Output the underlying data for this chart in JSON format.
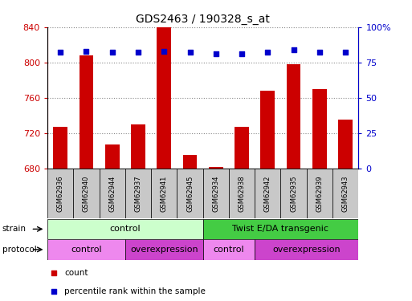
{
  "title": "GDS2463 / 190328_s_at",
  "samples": [
    "GSM62936",
    "GSM62940",
    "GSM62944",
    "GSM62937",
    "GSM62941",
    "GSM62945",
    "GSM62934",
    "GSM62938",
    "GSM62942",
    "GSM62935",
    "GSM62939",
    "GSM62943"
  ],
  "counts": [
    727,
    808,
    707,
    730,
    840,
    695,
    682,
    727,
    768,
    798,
    770,
    735
  ],
  "percentile_ranks": [
    82,
    83,
    82,
    82,
    83,
    82,
    81,
    81,
    82,
    84,
    82,
    82
  ],
  "ylim_left": [
    680,
    840
  ],
  "ylim_right": [
    0,
    100
  ],
  "yticks_left": [
    680,
    720,
    760,
    800,
    840
  ],
  "yticks_right": [
    0,
    25,
    50,
    75,
    100
  ],
  "bar_color": "#cc0000",
  "dot_color": "#0000cc",
  "strain_labels": [
    {
      "label": "control",
      "start": 0,
      "end": 6,
      "color": "#ccffcc"
    },
    {
      "label": "Twist E/DA transgenic",
      "start": 6,
      "end": 12,
      "color": "#44cc44"
    }
  ],
  "protocol_labels": [
    {
      "label": "control",
      "start": 0,
      "end": 3,
      "color": "#ee88ee"
    },
    {
      "label": "overexpression",
      "start": 3,
      "end": 6,
      "color": "#cc44cc"
    },
    {
      "label": "control",
      "start": 6,
      "end": 8,
      "color": "#ee88ee"
    },
    {
      "label": "overexpression",
      "start": 8,
      "end": 12,
      "color": "#cc44cc"
    }
  ],
  "legend_count_color": "#cc0000",
  "legend_pct_color": "#0000cc",
  "tick_color_left": "#cc0000",
  "tick_color_right": "#0000cc",
  "grid_color": "#888888",
  "background_color": "#ffffff"
}
